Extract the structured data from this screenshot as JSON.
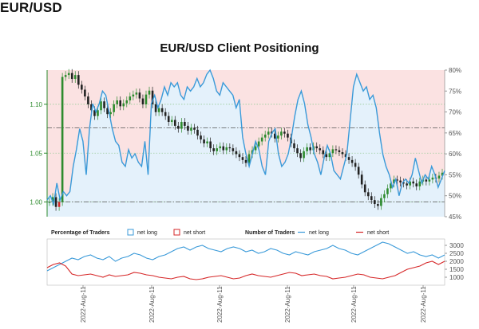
{
  "header": {
    "title": "EUR/USD"
  },
  "chart_data": [
    {
      "type": "line",
      "title": "EUR/USD Client Positioning",
      "left_axis": {
        "ticks": [
          "1.10",
          "1.05",
          "1.00"
        ],
        "tick_values": [
          1.1,
          1.05,
          1.0
        ],
        "range": [
          0.985,
          1.135
        ]
      },
      "right_axis": {
        "ticks": [
          "80%",
          "75%",
          "70%",
          "65%",
          "60%",
          "55%",
          "50%",
          "45%"
        ],
        "tick_values": [
          80,
          75,
          70,
          65,
          60,
          55,
          50,
          45
        ],
        "range": [
          45,
          80
        ]
      },
      "series": [
        {
          "name": "net long",
          "color": "#3a9ad9",
          "values": [
            49,
            50,
            48,
            53,
            49,
            51,
            50,
            51,
            57,
            61,
            66,
            63,
            55,
            66,
            72,
            70,
            72,
            75,
            74,
            70,
            66,
            63,
            62,
            58,
            57,
            61,
            59,
            60,
            58,
            57,
            63,
            55,
            72,
            74,
            71,
            73,
            76,
            74,
            77,
            76,
            77,
            74,
            73,
            76,
            75,
            76,
            78,
            76,
            77,
            79,
            80,
            78,
            75,
            74,
            77,
            76,
            75,
            74,
            71,
            73,
            64,
            60,
            57,
            60,
            63,
            61,
            57,
            55,
            63,
            65,
            66,
            60,
            57,
            58,
            60,
            64,
            69,
            73,
            75,
            72,
            67,
            64,
            60,
            58,
            55,
            59,
            62,
            60,
            56,
            55,
            54,
            57,
            60,
            68,
            76,
            79,
            77,
            75,
            76,
            73,
            74,
            71,
            65,
            60,
            57,
            55,
            52,
            54,
            50,
            53,
            54,
            53,
            55,
            59,
            56,
            53,
            55,
            54,
            57,
            55,
            52,
            54,
            56
          ]
        },
        {
          "name": "EUR/USD price",
          "color": "#333333",
          "values": [
            1.0,
            1.005,
            0.995,
            1.0,
            1.128,
            1.13,
            1.132,
            1.126,
            1.13,
            1.12,
            1.115,
            1.108,
            1.1,
            1.094,
            1.088,
            1.094,
            1.103,
            1.096,
            1.09,
            1.092,
            1.1,
            1.104,
            1.098,
            1.101,
            1.104,
            1.108,
            1.11,
            1.112,
            1.106,
            1.1,
            1.11,
            1.114,
            1.1,
            1.092,
            1.096,
            1.092,
            1.088,
            1.082,
            1.084,
            1.078,
            1.075,
            1.082,
            1.078,
            1.073,
            1.076,
            1.074,
            1.068,
            1.064,
            1.06,
            1.062,
            1.055,
            1.052,
            1.055,
            1.057,
            1.053,
            1.056,
            1.055,
            1.052,
            1.049,
            1.046,
            1.043,
            1.04,
            1.049,
            1.053,
            1.057,
            1.062,
            1.066,
            1.069,
            1.072,
            1.07,
            1.065,
            1.068,
            1.072,
            1.07,
            1.066,
            1.06,
            1.055,
            1.05,
            1.045,
            1.052,
            1.056,
            1.053,
            1.057,
            1.055,
            1.053,
            1.049,
            1.046,
            1.05,
            1.054,
            1.053,
            1.051,
            1.049,
            1.046,
            1.043,
            1.04,
            1.036,
            1.028,
            1.018,
            1.01,
            1.006,
            1.002,
            0.998,
            0.996,
            1.004,
            1.008,
            1.014,
            1.019,
            1.023,
            1.022,
            1.02,
            1.019,
            1.017,
            1.021,
            1.019,
            1.016,
            1.021,
            1.023,
            1.021,
            1.023,
            1.025,
            1.024,
            1.027,
            1.03
          ]
        }
      ],
      "reference_lines": {
        "dashdot_left": [
          1.0,
          1.076
        ]
      }
    },
    {
      "type": "line",
      "legend_groups": [
        {
          "title": "Percentage of Traders",
          "items": [
            {
              "name": "net long",
              "color": "#3a9ad9",
              "marker": "box"
            },
            {
              "name": "net short",
              "color": "#d62728",
              "marker": "box"
            }
          ]
        },
        {
          "title": "Number of Traders",
          "items": [
            {
              "name": "net long",
              "color": "#3a9ad9",
              "marker": "line"
            },
            {
              "name": "net short",
              "color": "#d62728",
              "marker": "line"
            }
          ]
        }
      ],
      "right_axis": {
        "ticks": [
          "3000",
          "2500",
          "2000",
          "1500",
          "1000"
        ],
        "tick_values": [
          3000,
          2500,
          2000,
          1500,
          1000
        ],
        "range": [
          500,
          3400
        ]
      },
      "x_ticks": [
        "2022-Aug-11",
        "2022-Aug-11",
        "2022-Aug-11",
        "2022-Aug-11",
        "2022-Aug-11",
        "2022-Aug-11"
      ],
      "series": [
        {
          "name": "net long",
          "color": "#3a9ad9",
          "values": [
            1400,
            1600,
            1800,
            2000,
            2200,
            2100,
            2300,
            2400,
            2200,
            2100,
            2300,
            2000,
            2200,
            2300,
            2500,
            2400,
            2200,
            2100,
            2300,
            2400,
            2600,
            2800,
            2900,
            2700,
            2900,
            3000,
            2800,
            2700,
            2600,
            2800,
            2900,
            2800,
            2600,
            2700,
            2500,
            2600,
            2800,
            2700,
            2500,
            2400,
            2600,
            2500,
            2400,
            2600,
            2700,
            2800,
            3000,
            2800,
            2700,
            2500,
            2400,
            2600,
            2800,
            3000,
            3200,
            3100,
            2900,
            2700,
            2500,
            2600,
            2400,
            2300,
            2400,
            2200,
            2400
          ]
        },
        {
          "name": "net short",
          "color": "#d62728",
          "values": [
            1600,
            1800,
            1900,
            1700,
            1200,
            1100,
            1150,
            1200,
            1100,
            1000,
            1150,
            1050,
            1100,
            1150,
            1300,
            1250,
            1150,
            1100,
            1000,
            950,
            900,
            1000,
            1050,
            900,
            850,
            900,
            1000,
            1050,
            1100,
            1000,
            900,
            950,
            1100,
            1200,
            1100,
            1050,
            1000,
            1100,
            1200,
            1300,
            1250,
            1100,
            1150,
            1200,
            1100,
            1050,
            900,
            950,
            1000,
            1100,
            1200,
            1150,
            1000,
            950,
            900,
            1000,
            1100,
            1300,
            1500,
            1600,
            1700,
            1900,
            2000,
            1800,
            2000
          ]
        }
      ]
    }
  ]
}
